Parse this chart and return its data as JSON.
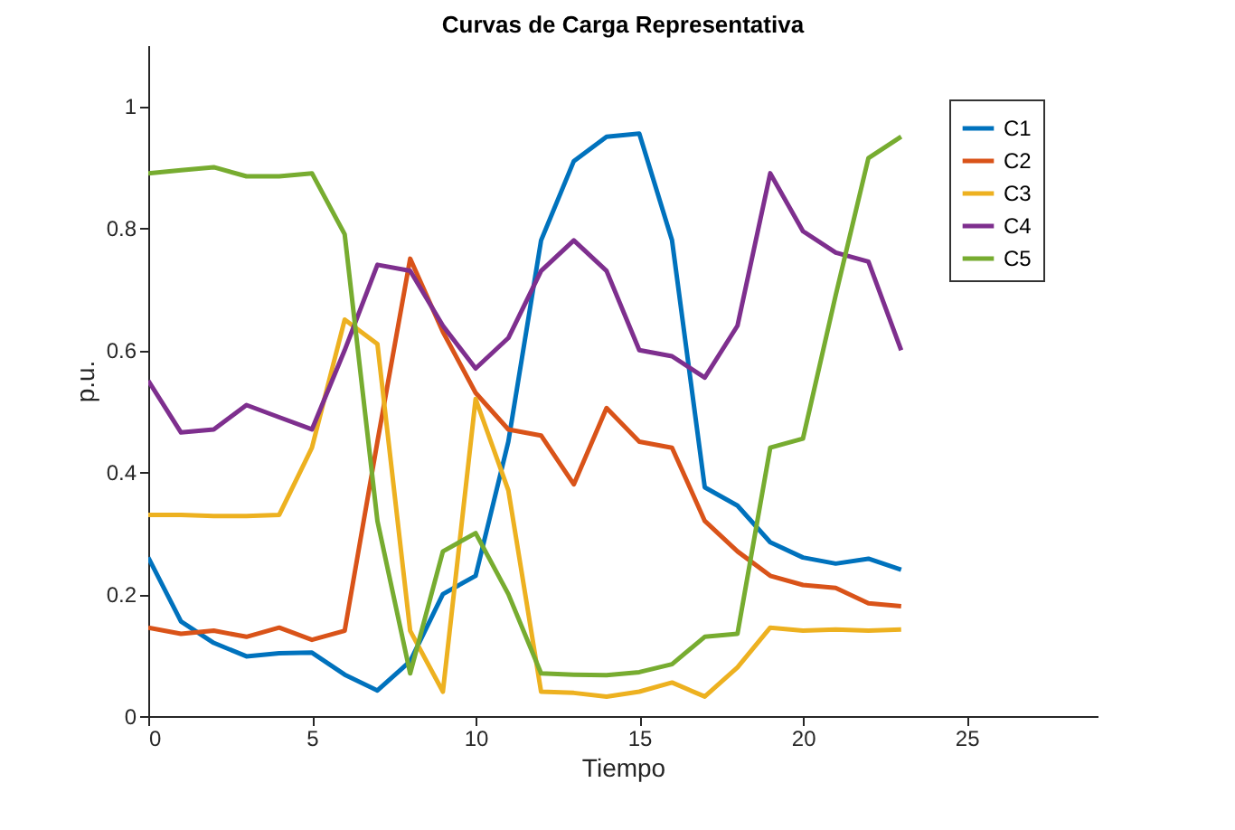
{
  "chart_data": {
    "type": "line",
    "title": "Curvas de Carga Representativa",
    "xlabel": "Tiempo",
    "ylabel": "p.u.",
    "x": [
      0,
      1,
      2,
      3,
      4,
      5,
      6,
      7,
      8,
      9,
      10,
      11,
      12,
      13,
      14,
      15,
      16,
      17,
      18,
      19,
      20,
      21,
      22,
      23
    ],
    "series": [
      {
        "name": "C1",
        "color": "#0072bd",
        "values": [
          0.26,
          0.155,
          0.12,
          0.098,
          0.103,
          0.104,
          0.068,
          0.042,
          0.09,
          0.2,
          0.23,
          0.45,
          0.78,
          0.91,
          0.95,
          0.955,
          0.78,
          0.375,
          0.345,
          0.285,
          0.26,
          0.25,
          0.258,
          0.24
        ]
      },
      {
        "name": "C2",
        "color": "#d95319",
        "values": [
          0.145,
          0.135,
          0.14,
          0.13,
          0.145,
          0.125,
          0.14,
          0.45,
          0.75,
          0.63,
          0.53,
          0.47,
          0.46,
          0.38,
          0.505,
          0.45,
          0.44,
          0.32,
          0.27,
          0.23,
          0.215,
          0.21,
          0.185,
          0.18
        ]
      },
      {
        "name": "C3",
        "color": "#edb120",
        "values": [
          0.33,
          0.33,
          0.328,
          0.328,
          0.33,
          0.44,
          0.65,
          0.61,
          0.14,
          0.04,
          0.52,
          0.37,
          0.04,
          0.038,
          0.032,
          0.04,
          0.055,
          0.032,
          0.08,
          0.145,
          0.14,
          0.142,
          0.14,
          0.142
        ]
      },
      {
        "name": "C4",
        "color": "#7e2f8e",
        "values": [
          0.55,
          0.465,
          0.47,
          0.51,
          0.49,
          0.47,
          0.6,
          0.74,
          0.73,
          0.64,
          0.57,
          0.62,
          0.73,
          0.78,
          0.73,
          0.6,
          0.59,
          0.555,
          0.64,
          0.89,
          0.795,
          0.76,
          0.745,
          0.6
        ]
      },
      {
        "name": "C5",
        "color": "#77ac30",
        "values": [
          0.89,
          0.895,
          0.9,
          0.885,
          0.885,
          0.89,
          0.79,
          0.32,
          0.07,
          0.27,
          0.3,
          0.2,
          0.07,
          0.068,
          0.067,
          0.072,
          0.085,
          0.13,
          0.135,
          0.44,
          0.455,
          0.69,
          0.915,
          0.95
        ]
      }
    ],
    "xlim": [
      0,
      29
    ],
    "xticks": [
      0,
      5,
      10,
      15,
      20,
      25
    ],
    "ylim": [
      0,
      1.1
    ],
    "yticks": [
      0,
      0.2,
      0.4,
      0.6,
      0.8,
      1
    ],
    "grid": false,
    "legend": "top right",
    "marker": "none",
    "line_style": "solid"
  }
}
